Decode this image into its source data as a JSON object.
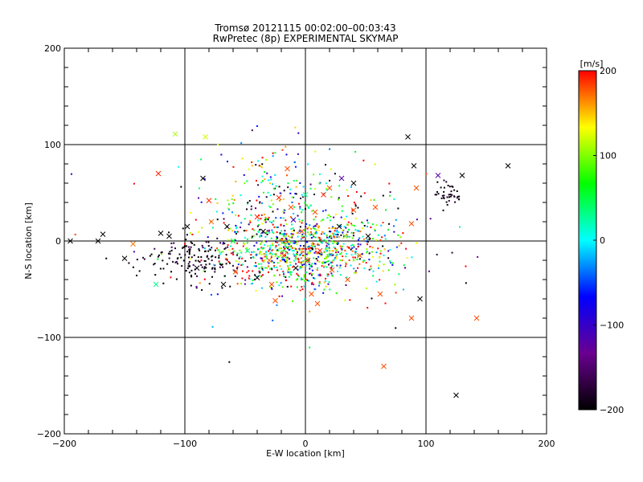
{
  "chart_data": {
    "type": "scatter",
    "title": "Tromsø 20121115 00:02:00–00:03:43",
    "subtitle": "RwPretec (8p) EXPERIMENTAL SKYMAP",
    "xlabel": "E-W location [km]",
    "ylabel": "N-S location [km]",
    "xlim": [
      -200,
      200
    ],
    "ylim": [
      -200,
      200
    ],
    "x_ticks": [
      -200,
      -100,
      0,
      100,
      200
    ],
    "y_ticks": [
      -200,
      -100,
      0,
      100,
      200
    ],
    "grid": true,
    "colorbar": {
      "label": "[m/s]",
      "range": [
        -200,
        200
      ],
      "ticks": [
        -200,
        -100,
        0,
        100,
        200
      ],
      "colors": [
        "#000000",
        "#6a0090",
        "#0000ff",
        "#00ffff",
        "#00ff00",
        "#ffff00",
        "#ff0000"
      ]
    },
    "markers": [
      {
        "x": -195,
        "y": 0,
        "v": -200
      },
      {
        "x": -172,
        "y": 0,
        "v": -200
      },
      {
        "x": -168,
        "y": 7,
        "v": -200
      },
      {
        "x": -150,
        "y": -18,
        "v": -200
      },
      {
        "x": -143,
        "y": -3,
        "v": 170
      },
      {
        "x": -122,
        "y": 70,
        "v": 190
      },
      {
        "x": -108,
        "y": 111,
        "v": 110
      },
      {
        "x": -83,
        "y": 108,
        "v": 120
      },
      {
        "x": -124,
        "y": -45,
        "v": 30
      },
      {
        "x": -120,
        "y": 8,
        "v": -200
      },
      {
        "x": -113,
        "y": 5,
        "v": -200
      },
      {
        "x": -98,
        "y": 15,
        "v": -200
      },
      {
        "x": -85,
        "y": 65,
        "v": -200
      },
      {
        "x": -80,
        "y": 42,
        "v": 190
      },
      {
        "x": -78,
        "y": 20,
        "v": 170
      },
      {
        "x": -65,
        "y": 15,
        "v": -200
      },
      {
        "x": -58,
        "y": -32,
        "v": 180
      },
      {
        "x": -48,
        "y": -10,
        "v": 30
      },
      {
        "x": -40,
        "y": 25,
        "v": 190
      },
      {
        "x": -35,
        "y": 10,
        "v": -200
      },
      {
        "x": -28,
        "y": -45,
        "v": 180
      },
      {
        "x": -22,
        "y": 45,
        "v": 190
      },
      {
        "x": -18,
        "y": -15,
        "v": 180
      },
      {
        "x": -12,
        "y": 35,
        "v": 180
      },
      {
        "x": -8,
        "y": -28,
        "v": -200
      },
      {
        "x": -3,
        "y": 10,
        "v": 180
      },
      {
        "x": 2,
        "y": -20,
        "v": 190
      },
      {
        "x": 8,
        "y": 30,
        "v": 180
      },
      {
        "x": 15,
        "y": 48,
        "v": 190
      },
      {
        "x": 22,
        "y": -30,
        "v": 180
      },
      {
        "x": 28,
        "y": 15,
        "v": -200
      },
      {
        "x": 35,
        "y": -40,
        "v": 180
      },
      {
        "x": 40,
        "y": 32,
        "v": 180
      },
      {
        "x": 45,
        "y": -15,
        "v": 180
      },
      {
        "x": 52,
        "y": 5,
        "v": -200
      },
      {
        "x": 58,
        "y": 35,
        "v": 180
      },
      {
        "x": 62,
        "y": -55,
        "v": 180
      },
      {
        "x": 65,
        "y": -130,
        "v": 180
      },
      {
        "x": 85,
        "y": 108,
        "v": -200
      },
      {
        "x": 90,
        "y": 78,
        "v": -200
      },
      {
        "x": 88,
        "y": 18,
        "v": 180
      },
      {
        "x": 92,
        "y": 55,
        "v": 180
      },
      {
        "x": 95,
        "y": -60,
        "v": -200
      },
      {
        "x": 88,
        "y": -80,
        "v": 180
      },
      {
        "x": 110,
        "y": 68,
        "v": -120
      },
      {
        "x": 130,
        "y": 68,
        "v": -200
      },
      {
        "x": 142,
        "y": -80,
        "v": 180
      },
      {
        "x": 125,
        "y": -160,
        "v": -200
      },
      {
        "x": 168,
        "y": 78,
        "v": -200
      },
      {
        "x": 5,
        "y": -55,
        "v": 180
      },
      {
        "x": -25,
        "y": -62,
        "v": 180
      },
      {
        "x": 10,
        "y": -65,
        "v": 180
      },
      {
        "x": 30,
        "y": 65,
        "v": -120
      },
      {
        "x": 40,
        "y": 60,
        "v": -200
      },
      {
        "x": -90,
        "y": -28,
        "v": -200
      },
      {
        "x": -68,
        "y": -45,
        "v": -200
      },
      {
        "x": -40,
        "y": -38,
        "v": -200
      },
      {
        "x": 20,
        "y": 55,
        "v": 180
      },
      {
        "x": -15,
        "y": 75,
        "v": 180
      },
      {
        "x": 0,
        "y": 48,
        "v": 30
      },
      {
        "x": 33,
        "y": 5,
        "v": 100
      },
      {
        "x": -60,
        "y": 0,
        "v": 60
      },
      {
        "x": -30,
        "y": -20,
        "v": 170
      },
      {
        "x": 12,
        "y": -10,
        "v": 190
      },
      {
        "x": -10,
        "y": 22,
        "v": -100
      }
    ]
  }
}
